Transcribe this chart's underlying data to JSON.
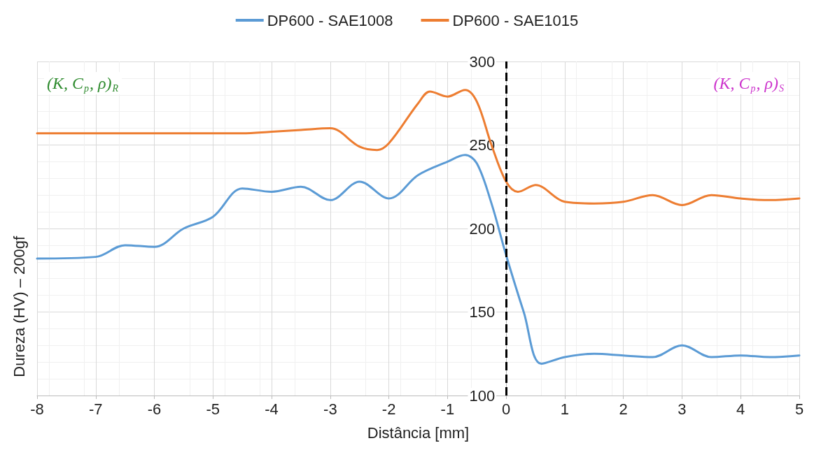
{
  "chart_data": {
    "type": "line",
    "xlabel": "Distância [mm]",
    "ylabel": "Dureza (HV) – 200gf",
    "xlim": [
      -8,
      5
    ],
    "xticks": [
      -8,
      -7,
      -6,
      -5,
      -4,
      -3,
      -2,
      -1,
      0,
      1,
      2,
      3,
      4,
      5
    ],
    "ylim": [
      100,
      300
    ],
    "yticks": [
      100,
      150,
      200,
      250,
      300
    ],
    "grid": true,
    "legend": "top",
    "marker": "none",
    "line_style": "solid",
    "series": [
      {
        "name": "DP600 - SAE1008",
        "color": "#5b9bd5",
        "x": [
          -8,
          -7,
          -6.5,
          -6,
          -5.5,
          -5,
          -4.5,
          -4,
          -3.5,
          -3,
          -2.5,
          -2,
          -1.5,
          -1,
          -0.7,
          -0.5,
          -0.25,
          0,
          0.3,
          0.6,
          1,
          1.5,
          2,
          2.5,
          3,
          3.5,
          4,
          4.5,
          5
        ],
        "values": [
          182,
          183,
          190,
          189,
          200,
          207,
          224,
          222,
          225,
          217,
          228,
          218,
          232,
          240,
          244,
          239,
          215,
          184,
          150,
          119,
          123,
          125,
          124,
          123,
          130,
          123,
          124,
          123,
          124
        ]
      },
      {
        "name": "DP600 - SAE1015",
        "color": "#ed7d31",
        "x": [
          -8,
          -7,
          -6,
          -5,
          -4.5,
          -4,
          -3.5,
          -3,
          -2.5,
          -2.2,
          -2,
          -1.5,
          -1.3,
          -1,
          -0.7,
          -0.5,
          -0.25,
          0,
          0.2,
          0.5,
          1,
          1.5,
          2,
          2.5,
          3,
          3.5,
          4,
          4.5,
          5
        ],
        "values": [
          257,
          257,
          257,
          257,
          257,
          258,
          259,
          260,
          249,
          247,
          251,
          275,
          282,
          279,
          283,
          276,
          250,
          228,
          222,
          226,
          216,
          215,
          216,
          220,
          214,
          220,
          218,
          217,
          218
        ]
      }
    ],
    "ref_lines": [
      {
        "axis": "x",
        "value": 0,
        "color": "#000000",
        "line_style": "dashed"
      }
    ],
    "annotations": [
      "(K, C$_{p}$, ρ)$_{R}$",
      "(K, C$_{p}$, ρ)$_{S}$"
    ]
  }
}
